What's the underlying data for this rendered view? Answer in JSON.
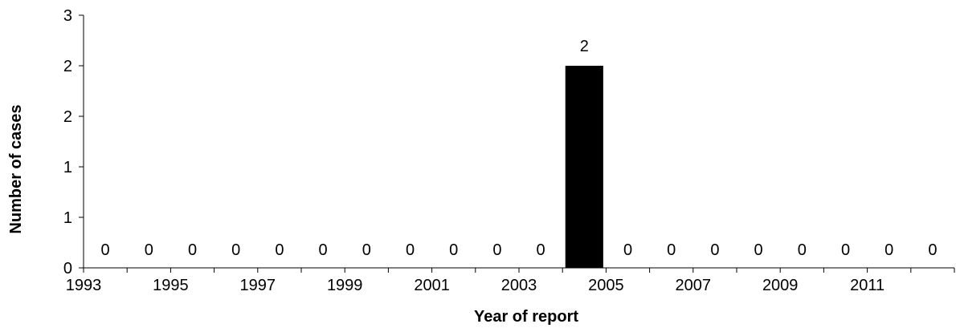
{
  "chart_data": {
    "type": "bar",
    "title": "",
    "xlabel": "Year of report",
    "ylabel": "Number of cases",
    "categories": [
      "1993",
      "1994",
      "1995",
      "1996",
      "1997",
      "1998",
      "1999",
      "2000",
      "2001",
      "2002",
      "2003",
      "2004",
      "2005",
      "2006",
      "2007",
      "2008",
      "2009",
      "2010",
      "2011",
      "2012"
    ],
    "values": [
      0,
      0,
      0,
      0,
      0,
      0,
      0,
      0,
      0,
      0,
      0,
      2,
      0,
      0,
      0,
      0,
      0,
      0,
      0,
      0
    ],
    "x_tick_labels": [
      "1993",
      "1995",
      "1997",
      "1999",
      "2001",
      "2003",
      "2005",
      "2007",
      "2009",
      "2011"
    ],
    "y_tick_labels": [
      "0",
      "1",
      "1",
      "2",
      "2",
      "3"
    ],
    "ylim": [
      0,
      2.5
    ],
    "grid": false,
    "bar_color": "#000000"
  }
}
